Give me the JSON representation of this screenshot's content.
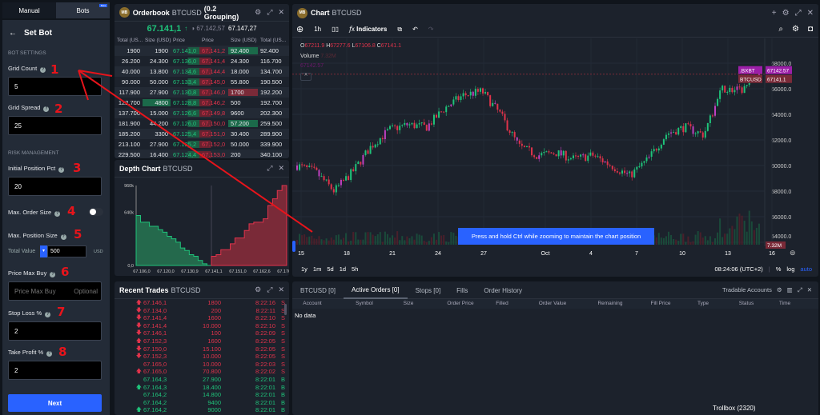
{
  "left": {
    "tabs": [
      "Manual",
      "Bots"
    ],
    "beta": "Beta",
    "title": "Set Bot",
    "bot_settings": "BOT SETTINGS",
    "risk_management": "RISK MANAGEMENT",
    "fields": {
      "grid_count": {
        "label": "Grid Count",
        "value": "5"
      },
      "grid_spread": {
        "label": "Grid Spread",
        "value": "25"
      },
      "initial_position_pct": {
        "label": "Initial Position Pct",
        "value": "20"
      },
      "max_order_size": {
        "label": "Max. Order Size",
        "enabled": false
      },
      "max_position_size": {
        "label": "Max. Position Size",
        "total_value_label": "Total Value",
        "value": "500",
        "unit": "USD"
      },
      "price_max_buy": {
        "label": "Price Max Buy",
        "placeholder": "Price Max Buy",
        "hint": "Optional"
      },
      "stop_loss": {
        "label": "Stop Loss %",
        "value": "2"
      },
      "take_profit": {
        "label": "Take Profit %",
        "value": "2"
      }
    },
    "next": "Next"
  },
  "annotations": [
    "1",
    "2",
    "3",
    "4",
    "5",
    "6",
    "7",
    "8"
  ],
  "orderbook": {
    "title": "Orderbook",
    "symbol": "BTCUSD",
    "grouping": "(0.2 Grouping)",
    "last": "67.141,1",
    "mark": "67.142,57",
    "index": "67.147,27",
    "headers": [
      "Total (US...",
      "Size (USD)",
      "Price",
      "Price",
      "Size (USD)",
      "Total (US..."
    ],
    "rows": [
      [
        "1900",
        "1900",
        "67.141,0",
        "67.141,2",
        "92.400",
        "92.400"
      ],
      [
        "26.200",
        "24.300",
        "67.136,0",
        "67.141,4",
        "24.300",
        "116.700"
      ],
      [
        "40.000",
        "13.800",
        "67.134,6",
        "67.144,4",
        "18.000",
        "134.700"
      ],
      [
        "90.000",
        "50.000",
        "67.133,4",
        "67.145,0",
        "55.800",
        "190.500"
      ],
      [
        "117.900",
        "27.900",
        "67.130,8",
        "67.146,0",
        "1700",
        "192.200"
      ],
      [
        "122.700",
        "4800",
        "67.128,8",
        "67.146,2",
        "500",
        "192.700"
      ],
      [
        "137.700",
        "15.000",
        "67.126,6",
        "67.149,8",
        "9600",
        "202.300"
      ],
      [
        "181.900",
        "44.200",
        "67.126,0",
        "67.150,0",
        "57.200",
        "259.500"
      ],
      [
        "185.200",
        "3300",
        "67.125,4",
        "67.151,0",
        "30.400",
        "289.900"
      ],
      [
        "213.100",
        "27.900",
        "67.125,2",
        "67.152,0",
        "50.000",
        "339.900"
      ],
      [
        "229.500",
        "16.400",
        "67.124,4",
        "67.153,0",
        "200",
        "340.100"
      ],
      [
        "247.600",
        "18.100",
        "67.124,2",
        "67.154,4",
        "32.000",
        "372.100"
      ],
      [
        "272.900",
        "25.300",
        "67.122,2",
        "67.154,6",
        "27.900",
        "400.000"
      ]
    ]
  },
  "depth": {
    "title": "Depth Chart",
    "symbol": "BTCUSD",
    "yticks": [
      "960k",
      "640k",
      "0,0"
    ],
    "xticks": [
      "67.106,0",
      "67.120,0",
      "67.130,9",
      "67.141,1",
      "67.151,0",
      "67.162,6",
      "67.176,2"
    ],
    "bids_k": [
      600,
      520,
      520,
      470,
      470,
      430,
      400,
      350,
      320,
      280,
      210,
      180,
      130,
      110,
      60,
      20,
      0
    ],
    "asks_k": [
      110,
      130,
      190,
      190,
      260,
      330,
      330,
      420,
      500,
      520,
      520,
      560,
      720,
      800,
      900,
      960
    ]
  },
  "trades": {
    "title": "Recent Trades",
    "symbol": "BTCUSD",
    "rows": [
      [
        "up",
        "67.146,1",
        "1800",
        "8:22:16",
        "S"
      ],
      [
        "down",
        "67.134,0",
        "200",
        "8:22:11",
        "S"
      ],
      [
        "down",
        "67.141,4",
        "1600",
        "8:22:10",
        "S"
      ],
      [
        "down",
        "67.141,4",
        "10.000",
        "8:22:10",
        "S"
      ],
      [
        "down",
        "67.146,1",
        "100",
        "8:22:09",
        "S"
      ],
      [
        "up",
        "67.152,3",
        "1600",
        "8:22:05",
        "S"
      ],
      [
        "down",
        "67.150,0",
        "15.100",
        "8:22:05",
        "S"
      ],
      [
        "down",
        "67.152,3",
        "10.000",
        "8:22:05",
        "S"
      ],
      [
        "",
        "67.165,0",
        "10.000",
        "8:22:03",
        "S"
      ],
      [
        "up",
        "67.165,0",
        "70.800",
        "8:22:02",
        "S"
      ],
      [
        "",
        "67.164,3",
        "27.900",
        "8:22:01",
        "B"
      ],
      [
        "up",
        "67.164,3",
        "18.400",
        "8:22:01",
        "B"
      ],
      [
        "",
        "67.164,2",
        "14.800",
        "8:22:01",
        "B"
      ],
      [
        "",
        "67.164,2",
        "9400",
        "8:22:01",
        "B"
      ],
      [
        "up",
        "67.164,2",
        "9000",
        "8:22:01",
        "B"
      ]
    ]
  },
  "chart": {
    "title": "Chart",
    "symbol": "BTCUSD",
    "interval": "1h",
    "indicators": "Indicators",
    "ohlc": {
      "o": "67211.9",
      "h": "67277.6",
      "l": "67106.8",
      "c": "67141.1"
    },
    "volume_label": "Volume",
    "volume_value": "7.32M",
    "index_value": "67142.57",
    "yticks": [
      "68000.0",
      "66000.0",
      "64000.0",
      "62000.0",
      "60000.0",
      "58000.0",
      "56000.0",
      "54000.0"
    ],
    "xticks": [
      "15",
      "18",
      "21",
      "24",
      "27",
      "Oct",
      "4",
      "7",
      "10",
      "13",
      "16"
    ],
    "tag_index": [
      ".BXBT",
      "67142.57"
    ],
    "tag_symbol": [
      "BTCUSD",
      "67141.1"
    ],
    "vol_tag": "7.32M",
    "ranges": [
      "1y",
      "1m",
      "5d",
      "1d",
      "5h"
    ],
    "time": "08:24:06 (UTC+2)",
    "pct": "%",
    "log": "log",
    "auto": "auto",
    "tooltip": "Press and hold Ctrl while zooming to maintain the chart position",
    "price_path": [
      60000,
      59500,
      58000,
      59500,
      61500,
      62800,
      63200,
      63000,
      64500,
      65500,
      65800,
      64000,
      61500,
      60800,
      61000,
      60500,
      60800,
      60000,
      59200,
      60500,
      62500,
      63000,
      62400,
      66000,
      65800,
      67141
    ]
  },
  "orders": {
    "tabs": [
      "BTCUSD [0]",
      "Active Orders [0]",
      "Stops [0]",
      "Fills",
      "Order History"
    ],
    "tradable": "Tradable Accounts",
    "columns": [
      "Account",
      "Symbol",
      "Size",
      "Order Price",
      "Filled",
      "Order Value",
      "Remaining",
      "Fill Price",
      "Type",
      "Status",
      "Time"
    ],
    "empty": "No data"
  },
  "trollbox": "Trollbox (2320)"
}
